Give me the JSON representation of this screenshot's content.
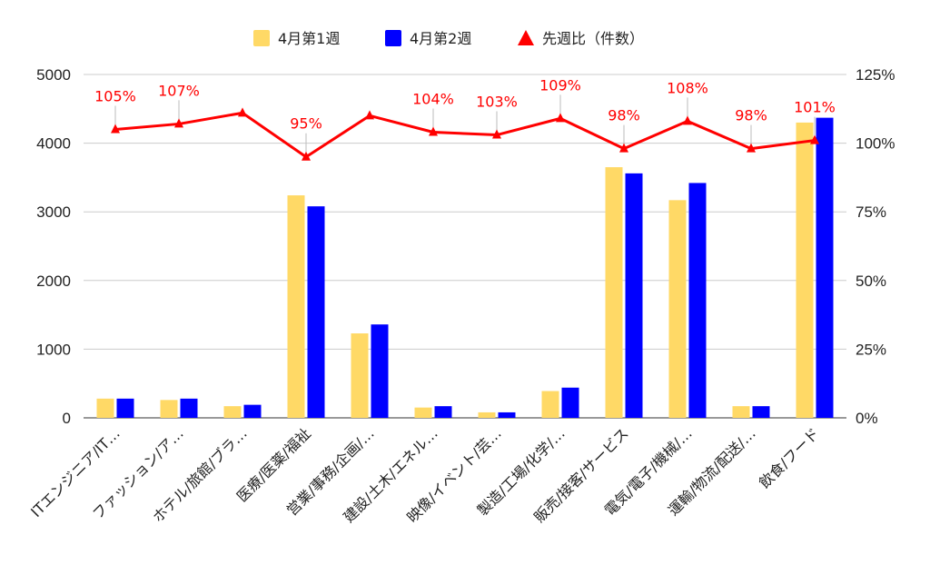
{
  "chart_data": {
    "type": "bar",
    "categories": [
      "ITエンジニア/IT…",
      "ファッション/ア…",
      "ホテル/旅館/ブラ…",
      "医療/医薬/福祉",
      "営業/事務/企画/…",
      "建設/土木/エネル…",
      "映像/イベント/芸…",
      "製造/工場/化学/…",
      "販売/接客/サービス",
      "電気/電子/機械/…",
      "運輸/物流/配送/…",
      "飲食/フード"
    ],
    "series": [
      {
        "name": "4月第1週",
        "type": "bar",
        "axis": "left",
        "color": "#ffd966",
        "values": [
          280,
          260,
          170,
          3240,
          1230,
          150,
          80,
          390,
          3650,
          3170,
          170,
          4300
        ]
      },
      {
        "name": "4月第2週",
        "type": "bar",
        "axis": "left",
        "color": "#0000ff",
        "values": [
          280,
          280,
          190,
          3080,
          1360,
          170,
          80,
          440,
          3560,
          3420,
          170,
          4370
        ]
      },
      {
        "name": "先週比（件数）",
        "type": "line",
        "axis": "right",
        "color": "#ff0000",
        "marker": "triangle",
        "values": [
          105,
          107,
          111,
          95,
          110,
          104,
          103,
          109,
          98,
          108,
          98,
          101
        ]
      }
    ],
    "data_labels": [
      "105%",
      "107%",
      "",
      "95%",
      "",
      "104%",
      "103%",
      "109%",
      "98%",
      "108%",
      "98%",
      "101%"
    ],
    "y_left": {
      "min": 0,
      "max": 5000,
      "ticks": [
        "0",
        "1000",
        "2000",
        "3000",
        "4000",
        "5000"
      ]
    },
    "y_right": {
      "min": 0,
      "max": 125,
      "ticks": [
        "0%",
        "25%",
        "50%",
        "75%",
        "100%",
        "125%"
      ]
    },
    "grid": true,
    "legend": "top-center",
    "title": "",
    "xlabel": "",
    "ylabel": ""
  }
}
